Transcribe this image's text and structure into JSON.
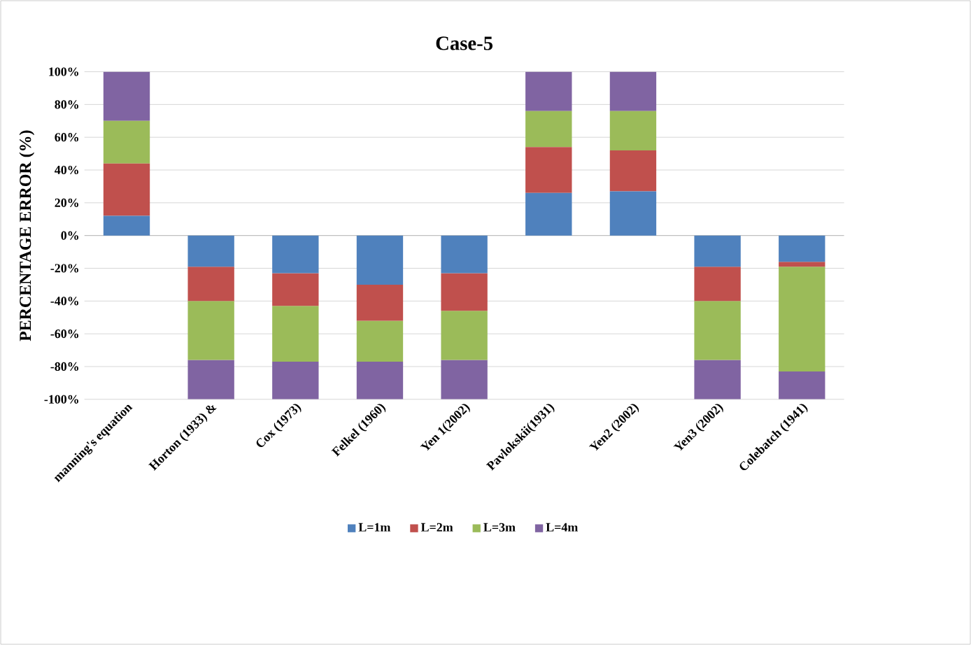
{
  "chart_data": {
    "type": "bar",
    "stacked": true,
    "title": "Case-5",
    "ylabel": "PERCENTAGE ERROR (%)",
    "categories": [
      "manning's equation",
      "Horton (1933) &",
      "Cox (1973)",
      "Felkel (1960)",
      "Yen 1(2002)",
      "Pavlokskii(1931)",
      "Yen2 (2002)",
      "Yen3 (2002)",
      "Colebatch (1941)"
    ],
    "series": [
      {
        "name": "L=1m",
        "color": "#4f81bd",
        "values": [
          12,
          -19,
          -23,
          -30,
          -23,
          26,
          27,
          -19,
          -16
        ]
      },
      {
        "name": "L=2m",
        "color": "#c0504d",
        "values": [
          32,
          -21,
          -20,
          -22,
          -23,
          28,
          25,
          -21,
          -3
        ]
      },
      {
        "name": "L=3m",
        "color": "#9bbb59",
        "values": [
          26,
          -36,
          -34,
          -25,
          -30,
          22,
          24,
          -36,
          -64
        ]
      },
      {
        "name": "L=4m",
        "color": "#8064a2",
        "values": [
          30,
          -24,
          -23,
          -23,
          -24,
          24,
          24,
          -24,
          -17
        ]
      }
    ],
    "ylim": [
      -100,
      100
    ],
    "yticks": [
      {
        "value": -100,
        "label": "-100%"
      },
      {
        "value": -80,
        "label": "-80%"
      },
      {
        "value": -60,
        "label": "-60%"
      },
      {
        "value": -40,
        "label": "-40%"
      },
      {
        "value": -20,
        "label": "-20%"
      },
      {
        "value": 0,
        "label": "0%"
      },
      {
        "value": 20,
        "label": "20%"
      },
      {
        "value": 40,
        "label": "40%"
      },
      {
        "value": 60,
        "label": "60%"
      },
      {
        "value": 80,
        "label": "80%"
      },
      {
        "value": 100,
        "label": "100%"
      }
    ],
    "grid": "y",
    "legend": "bottom"
  }
}
